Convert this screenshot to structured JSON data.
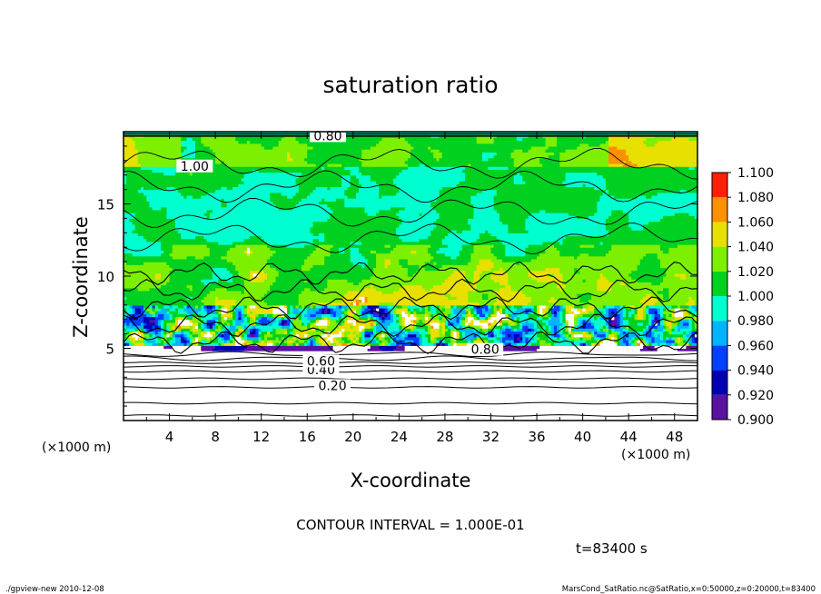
{
  "chart_data": {
    "type": "heatmap",
    "title": "saturation ratio",
    "xlabel": "X-coordinate",
    "ylabel": "Z-coordinate",
    "x_unit": "(×1000 m)",
    "y_unit": "(×1000 m)",
    "xlim": [
      0,
      50
    ],
    "ylim": [
      0,
      20
    ],
    "x_ticks": [
      "4",
      "8",
      "12",
      "16",
      "20",
      "24",
      "28",
      "32",
      "36",
      "40",
      "44",
      "48"
    ],
    "x_tick_values": [
      4,
      8,
      12,
      16,
      20,
      24,
      28,
      32,
      36,
      40,
      44,
      48
    ],
    "y_ticks": [
      "5",
      "10",
      "15"
    ],
    "y_tick_values": [
      5,
      10,
      15
    ],
    "colorbar": {
      "labels": [
        "0.900",
        "0.920",
        "0.940",
        "0.960",
        "0.980",
        "1.000",
        "1.020",
        "1.040",
        "1.060",
        "1.080",
        "1.100"
      ],
      "colors": [
        "#5a10a0",
        "#0000b0",
        "#0040ff",
        "#00b4ff",
        "#00ffd0",
        "#00d020",
        "#7cf000",
        "#e8e000",
        "#ff9000",
        "#ff2000",
        "#ff8080"
      ]
    },
    "contour_labels": [
      {
        "text": "0.20",
        "x": 18.2,
        "z": 2.3
      },
      {
        "text": "0.40",
        "x": 17.2,
        "z": 3.4
      },
      {
        "text": "0.60",
        "x": 17.2,
        "z": 4.0
      },
      {
        "text": "0.80",
        "x": 31.5,
        "z": 4.8
      },
      {
        "text": "0.80",
        "x": 17.8,
        "z": 19.6
      },
      {
        "text": "1.00",
        "x": 6.2,
        "z": 17.5
      }
    ],
    "contour_interval_text": "CONTOUR INTERVAL = 1.000E-01",
    "time_text": "t=83400 s",
    "field_notes": {
      "near_saturation_region_z": [
        11,
        20
      ],
      "supersaturated_band_z": [
        5.5,
        12
      ],
      "subsaturated_layer_z": [
        0,
        5
      ]
    }
  },
  "footer": {
    "left": "./gpview-new  2010-12-08",
    "right": "MarsCond_SatRatio.nc@SatRatio,x=0:50000,z=0:20000,t=83400"
  }
}
